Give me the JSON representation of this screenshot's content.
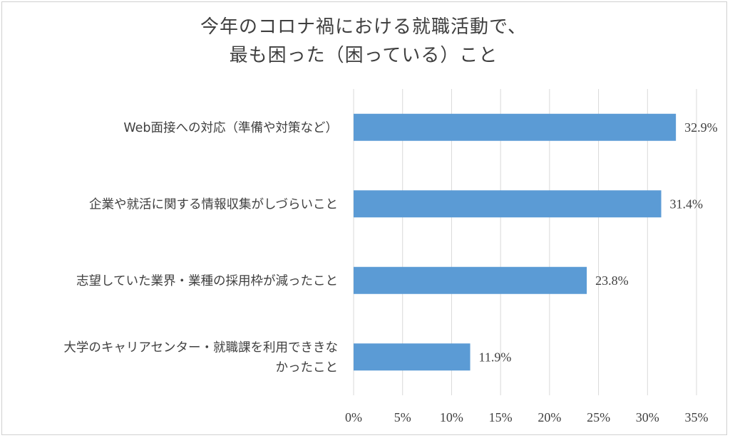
{
  "chart_data": {
    "type": "bar",
    "orientation": "horizontal",
    "title": [
      "今年のコロナ禍における就職活動で、",
      "最も困った（困っている）こと"
    ],
    "categories": [
      [
        "Web面接への対応（準備や対策など）"
      ],
      [
        "企業や就活に関する情報収集がしづらいこと"
      ],
      [
        "志望していた業界・業種の採用枠が減ったこと"
      ],
      [
        "大学のキャリアセンター・就職課を利用でききな",
        "かったこと"
      ]
    ],
    "values": [
      32.9,
      31.4,
      23.8,
      11.9
    ],
    "data_labels": [
      "32.9%",
      "31.4%",
      "23.8%",
      "11.9%"
    ],
    "xticks": [
      0,
      5,
      10,
      15,
      20,
      25,
      30,
      35
    ],
    "xtick_labels": [
      "0%",
      "5%",
      "10%",
      "15%",
      "20%",
      "25%",
      "30%",
      "35%"
    ],
    "xlim": [
      0,
      35
    ],
    "grid": true,
    "bar_color": "#5b9bd5",
    "grid_color": "#d9d9d9"
  }
}
